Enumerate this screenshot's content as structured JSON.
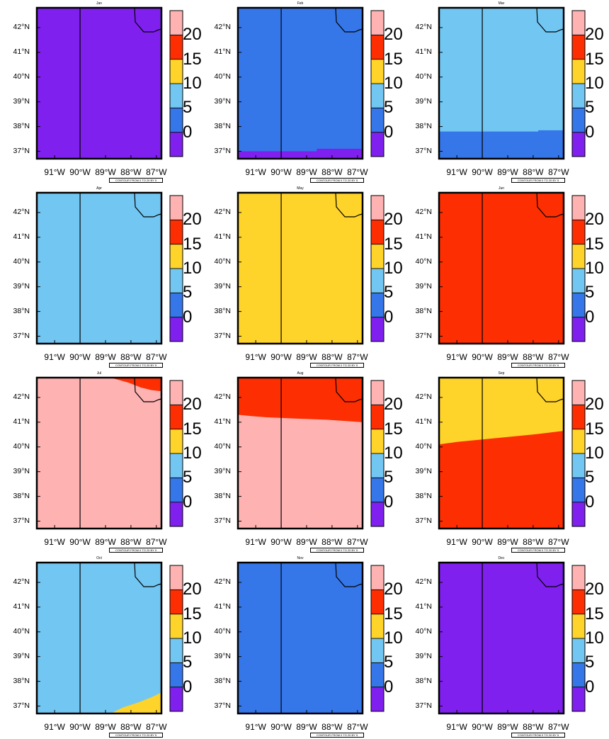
{
  "colorbar": {
    "levels": [
      0,
      5,
      10,
      15,
      20
    ],
    "labels": [
      "20",
      "15",
      "10",
      "5",
      "0"
    ],
    "colors": [
      "#7f20ee",
      "#3576e8",
      "#72c6f2",
      "#fed32a",
      "#fc2e02",
      "#feb2b2"
    ]
  },
  "footnote": "CONTOUR FROM 0 TO 20 BY 5",
  "axes": {
    "lat_labels": [
      "42°N",
      "41°N",
      "40°N",
      "39°N",
      "38°N",
      "37°N"
    ],
    "lon_labels": [
      "91°W",
      "90°W",
      "89°W",
      "88°W",
      "87°W"
    ]
  },
  "chart_data": [
    {
      "type": "heatmap",
      "title": "Jan",
      "xlim": [
        -91.7,
        -86.8
      ],
      "ylim": [
        36.7,
        42.8
      ],
      "fill": "#7f20ee",
      "regions": []
    },
    {
      "type": "heatmap",
      "title": "Feb",
      "xlim": [
        -91.7,
        -86.8
      ],
      "ylim": [
        36.7,
        42.8
      ],
      "fill": "#7f20ee",
      "regions": [
        {
          "color": "#3576e8",
          "boundary_lat": [
            [
              -91.7,
              37.0
            ],
            [
              -88.6,
              37.0
            ],
            [
              -88.6,
              37.1
            ],
            [
              -86.8,
              37.1
            ]
          ]
        }
      ]
    },
    {
      "type": "heatmap",
      "title": "Mar",
      "xlim": [
        -91.7,
        -86.8
      ],
      "ylim": [
        36.7,
        42.8
      ],
      "fill": "#3576e8",
      "regions": [
        {
          "color": "#72c6f2",
          "boundary_lat": [
            [
              -91.7,
              37.8
            ],
            [
              -87.8,
              37.8
            ],
            [
              -87.8,
              37.85
            ],
            [
              -86.8,
              37.85
            ]
          ]
        }
      ]
    },
    {
      "type": "heatmap",
      "title": "Apr",
      "xlim": [
        -91.7,
        -86.8
      ],
      "ylim": [
        36.7,
        42.8
      ],
      "fill": "#72c6f2",
      "regions": []
    },
    {
      "type": "heatmap",
      "title": "May",
      "xlim": [
        -91.7,
        -86.8
      ],
      "ylim": [
        36.7,
        42.8
      ],
      "fill": "#fed32a",
      "regions": []
    },
    {
      "type": "heatmap",
      "title": "Jun",
      "xlim": [
        -91.7,
        -86.8
      ],
      "ylim": [
        36.7,
        42.8
      ],
      "fill": "#fc2e02",
      "regions": []
    },
    {
      "type": "heatmap",
      "title": "Jul",
      "xlim": [
        -91.7,
        -86.8
      ],
      "ylim": [
        36.7,
        42.8
      ],
      "fill": "#feb2b2",
      "regions": [
        {
          "color": "#fc2e02",
          "boundary_lat": [
            [
              -88.8,
              42.8
            ],
            [
              -88.1,
              42.6
            ],
            [
              -87.6,
              42.4
            ],
            [
              -87.2,
              42.3
            ],
            [
              -86.8,
              42.25
            ]
          ]
        }
      ]
    },
    {
      "type": "heatmap",
      "title": "Aug",
      "xlim": [
        -91.7,
        -86.8
      ],
      "ylim": [
        36.7,
        42.8
      ],
      "fill": "#feb2b2",
      "regions": [
        {
          "color": "#fc2e02",
          "boundary_lat": [
            [
              -91.7,
              41.3
            ],
            [
              -91.2,
              41.25
            ],
            [
              -90.6,
              41.2
            ],
            [
              -89.5,
              41.15
            ],
            [
              -88.2,
              41.1
            ],
            [
              -86.8,
              41.0
            ]
          ]
        }
      ]
    },
    {
      "type": "heatmap",
      "title": "Sep",
      "xlim": [
        -91.7,
        -86.8
      ],
      "ylim": [
        36.7,
        42.8
      ],
      "fill": "#fc2e02",
      "regions": [
        {
          "color": "#fed32a",
          "boundary_lat": [
            [
              -91.7,
              40.1
            ],
            [
              -91.0,
              40.2
            ],
            [
              -90.0,
              40.3
            ],
            [
              -89.0,
              40.4
            ],
            [
              -88.0,
              40.5
            ],
            [
              -86.8,
              40.65
            ]
          ]
        }
      ]
    },
    {
      "type": "heatmap",
      "title": "Oct",
      "xlim": [
        -91.7,
        -86.8
      ],
      "ylim": [
        36.7,
        42.8
      ],
      "fill": "#72c6f2",
      "regions": [
        {
          "color": "#fed32a",
          "boundary_lat": [
            [
              -88.8,
              36.7
            ],
            [
              -88.3,
              36.95
            ],
            [
              -87.7,
              37.15
            ],
            [
              -87.2,
              37.35
            ],
            [
              -86.8,
              37.55
            ]
          ],
          "below": true
        }
      ]
    },
    {
      "type": "heatmap",
      "title": "Nov",
      "xlim": [
        -91.7,
        -86.8
      ],
      "ylim": [
        36.7,
        42.8
      ],
      "fill": "#3576e8",
      "regions": []
    },
    {
      "type": "heatmap",
      "title": "Dec",
      "xlim": [
        -91.7,
        -86.8
      ],
      "ylim": [
        36.7,
        42.8
      ],
      "fill": "#7f20ee",
      "regions": []
    }
  ]
}
